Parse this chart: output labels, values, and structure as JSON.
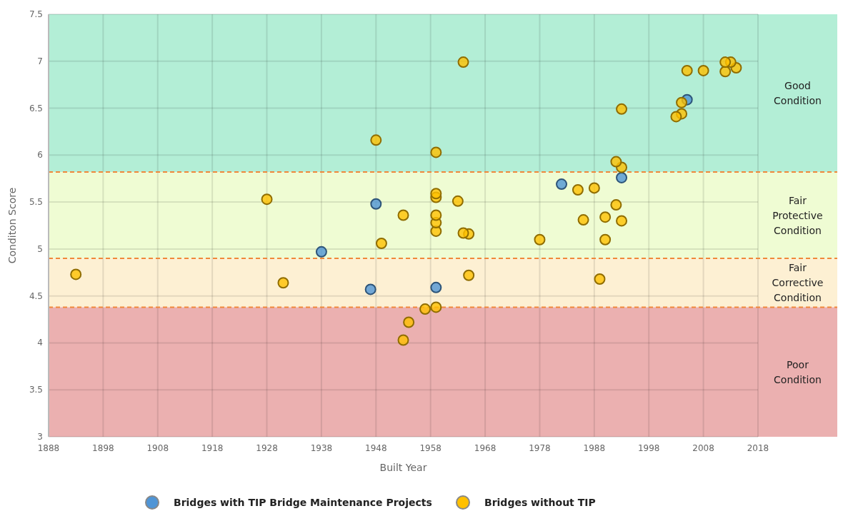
{
  "chart_data": {
    "type": "scatter",
    "xlabel": "Built Year",
    "ylabel": "Conditon Score",
    "xlim": [
      1888,
      2018
    ],
    "xticks": [
      1888,
      1898,
      1908,
      1918,
      1928,
      1938,
      1948,
      1958,
      1968,
      1978,
      1988,
      1998,
      2008,
      2018
    ],
    "ylim": [
      3,
      7.5
    ],
    "yticks": [
      3,
      3.5,
      4,
      4.5,
      5,
      5.5,
      6,
      6.5,
      7,
      7.5
    ],
    "grid": true,
    "legend": "bottom",
    "marker": "circle",
    "series": [
      {
        "name": "Bridges with TIP Bridge Maintenance Projects",
        "color": "#4f95d6",
        "x": [
          1938,
          1948,
          1947,
          1959,
          1982,
          1993,
          2005
        ],
        "values": [
          4.97,
          5.48,
          4.57,
          4.59,
          5.69,
          5.76,
          6.59
        ]
      },
      {
        "name": "Bridges without TIP",
        "color": "#ffc000",
        "x": [
          1893,
          1928,
          1931,
          1948,
          1949,
          1953,
          1959,
          1959,
          1959,
          1959,
          1959,
          1959,
          1963,
          1964,
          1965,
          1965,
          1964,
          1959,
          1957,
          1954,
          1953,
          1978,
          1986,
          1985,
          1988,
          1990,
          1990,
          1992,
          1993,
          1989,
          1992,
          1993,
          1993,
          2003,
          2004,
          2004,
          2005,
          2008,
          2012,
          2013,
          2014,
          2012
        ],
        "values": [
          4.73,
          5.53,
          4.64,
          6.16,
          5.06,
          5.36,
          6.03,
          5.59,
          5.55,
          5.36,
          5.28,
          5.19,
          5.51,
          5.17,
          5.16,
          4.72,
          6.99,
          4.38,
          4.36,
          4.22,
          4.03,
          5.1,
          5.31,
          5.63,
          5.65,
          5.34,
          5.1,
          5.47,
          5.3,
          4.68,
          5.93,
          5.87,
          6.49,
          6.41,
          6.44,
          6.56,
          6.9,
          6.9,
          6.99,
          6.99,
          6.93,
          6.89
        ]
      }
    ],
    "bands": [
      {
        "axis": "y",
        "from": 5.82,
        "to": 7.5,
        "label": "Good Condition",
        "color": "#b3eed6"
      },
      {
        "axis": "y",
        "from": 4.9,
        "to": 5.82,
        "label": "Fair Protective Condition",
        "color": "#effcd3"
      },
      {
        "axis": "y",
        "from": 4.38,
        "to": 4.9,
        "label": "Fair Corrective Condition",
        "color": "#fdf0d3"
      },
      {
        "axis": "y",
        "from": 3,
        "to": 4.38,
        "label": "Poor Condition",
        "color": "#ebb0b0"
      }
    ],
    "ref_lines": [
      {
        "axis": "y",
        "value": 5.82,
        "color": "#f0883a",
        "line_style": "dashed"
      },
      {
        "axis": "y",
        "value": 4.9,
        "color": "#f0883a",
        "line_style": "dashed"
      },
      {
        "axis": "y",
        "value": 4.38,
        "color": "#f0883a",
        "line_style": "dashed"
      }
    ]
  }
}
